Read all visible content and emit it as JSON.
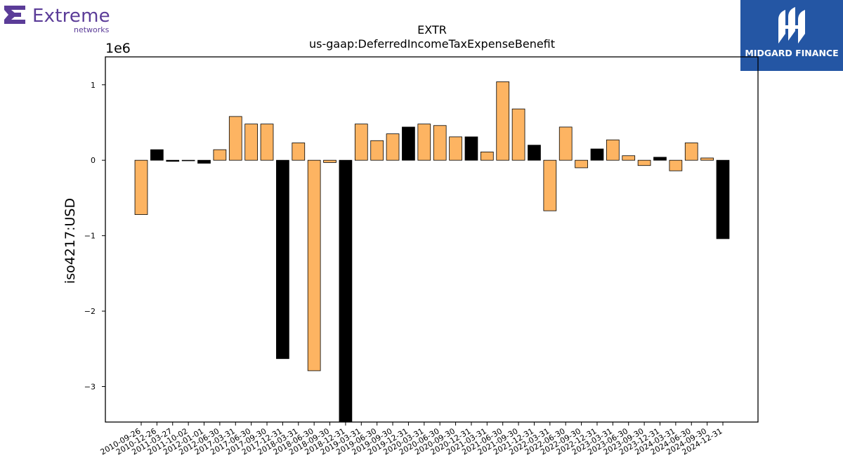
{
  "logos": {
    "left_brand": "Extreme",
    "left_sub": "networks",
    "right_name": "MIDGARD FINANCE"
  },
  "colors": {
    "bar_positive": "#fdb462",
    "bar_highlight": "#000000",
    "brand_left": "#5b3c98",
    "brand_right_bg": "#2456a4"
  },
  "chart_data": {
    "type": "bar",
    "title": "EXTR",
    "subtitle": "us-gaap:DeferredIncomeTaxExpenseBenefit",
    "ylabel": "iso4217:USD",
    "xlabel": "",
    "y_scale_label": "1e6",
    "ylim": [
      -3.47,
      1.37
    ],
    "yticks": [
      1,
      0,
      -1,
      -2,
      -3
    ],
    "ytick_labels": [
      "1",
      "0",
      "−1",
      "−2",
      "−3"
    ],
    "grid": false,
    "legend": "none",
    "categories": [
      "2010-09-26",
      "2010-12-26",
      "2011-03-27",
      "2011-10-02",
      "2012-01-01",
      "2012-06-30",
      "2017-03-31",
      "2017-06-30",
      "2017-09-30",
      "2017-12-31",
      "2018-03-31",
      "2018-06-30",
      "2018-09-30",
      "2018-12-31",
      "2019-03-31",
      "2019-06-30",
      "2019-09-30",
      "2019-12-31",
      "2020-03-31",
      "2020-06-30",
      "2020-09-30",
      "2020-12-31",
      "2021-03-31",
      "2021-06-30",
      "2021-09-30",
      "2021-12-31",
      "2022-03-31",
      "2022-06-30",
      "2022-09-30",
      "2022-12-31",
      "2023-03-31",
      "2023-06-30",
      "2023-09-30",
      "2023-12-31",
      "2024-03-31",
      "2024-06-30",
      "2024-09-30",
      "2024-12-31"
    ],
    "values": [
      -0.72,
      0.14,
      -0.015,
      -0.007,
      -0.04,
      0.14,
      0.58,
      0.48,
      0.48,
      -2.63,
      0.23,
      -2.79,
      -0.03,
      -3.6,
      0.48,
      0.26,
      0.35,
      0.44,
      0.48,
      0.46,
      0.31,
      0.31,
      0.11,
      1.04,
      0.68,
      0.2,
      -0.67,
      0.44,
      -0.1,
      0.15,
      0.27,
      0.06,
      -0.07,
      0.04,
      -0.14,
      0.23,
      0.03,
      -1.04
    ],
    "highlight": [
      false,
      true,
      true,
      false,
      true,
      false,
      false,
      false,
      false,
      true,
      false,
      false,
      false,
      true,
      false,
      false,
      false,
      true,
      false,
      false,
      false,
      true,
      false,
      false,
      false,
      true,
      false,
      false,
      false,
      true,
      false,
      false,
      false,
      true,
      false,
      false,
      false,
      true
    ]
  }
}
